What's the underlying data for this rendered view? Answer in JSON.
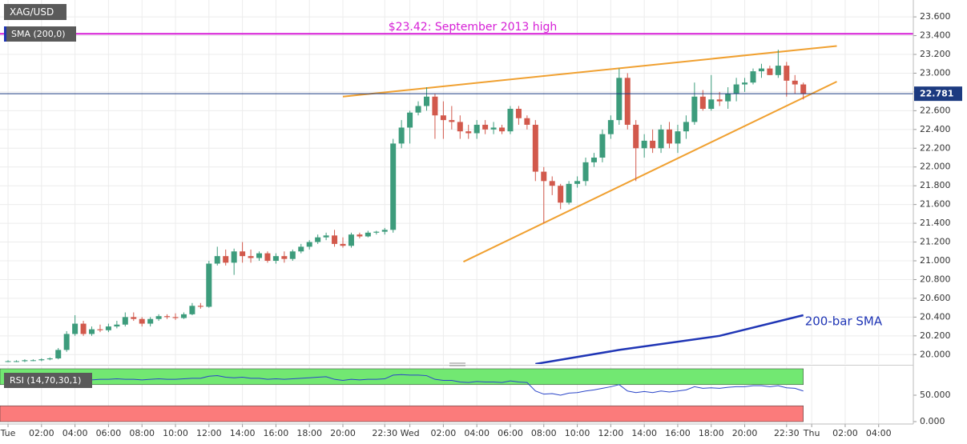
{
  "chart_data": [
    {
      "type": "candlestick",
      "title": "XAG/USD",
      "x": [
        0,
        0.5,
        1,
        1.5,
        2,
        2.5,
        3,
        3.5,
        4,
        4.5,
        5,
        5.5,
        6,
        6.5,
        7,
        7.5,
        8,
        8.5,
        9,
        9.5,
        10,
        10.5,
        11,
        11.5,
        12,
        12.5,
        13,
        13.5,
        14,
        14.5,
        15,
        15.5,
        16,
        16.5,
        17,
        17.5,
        18,
        18.5,
        19,
        19.5,
        20,
        20.5,
        21,
        21.5,
        22,
        22.5,
        23,
        23.5,
        24,
        24.5,
        25,
        25.5,
        26,
        26.5,
        27,
        27.5,
        28,
        28.5,
        29,
        29.5,
        30,
        30.5,
        31,
        31.5,
        32,
        32.5,
        33,
        33.5,
        34,
        34.5,
        35,
        35.5,
        36,
        36.5,
        37,
        37.5,
        38,
        38.5,
        39,
        39.5,
        40,
        40.5,
        41,
        41.5,
        42,
        42.5,
        43,
        43.5,
        44,
        44.5,
        45,
        45.5,
        46,
        46.5,
        47,
        47.5
      ],
      "open": [
        19.93,
        19.93,
        19.93,
        19.94,
        19.94,
        19.95,
        19.96,
        20.05,
        20.22,
        20.33,
        20.22,
        20.27,
        20.26,
        20.3,
        20.32,
        20.4,
        20.38,
        20.33,
        20.38,
        20.41,
        20.4,
        20.39,
        20.43,
        20.52,
        20.51,
        20.97,
        21.05,
        20.98,
        21.1,
        21.05,
        21.03,
        21.08,
        21.0,
        21.05,
        21.02,
        21.1,
        21.15,
        21.2,
        21.25,
        21.27,
        21.18,
        21.16,
        21.28,
        21.26,
        21.3,
        21.31,
        21.33,
        22.25,
        22.42,
        22.58,
        22.65,
        22.75,
        22.55,
        22.5,
        22.48,
        22.38,
        22.36,
        22.45,
        22.4,
        22.42,
        22.38,
        22.62,
        22.52,
        22.45,
        21.95,
        21.85,
        21.8,
        21.62,
        21.82,
        21.85,
        22.05,
        22.1,
        22.35,
        22.5,
        22.95,
        22.45,
        22.2,
        22.28,
        22.2,
        22.4,
        22.25,
        22.38,
        22.48,
        22.75,
        22.62,
        22.72,
        22.7,
        22.78,
        22.88,
        22.9,
        23.02,
        23.05,
        22.98,
        23.08,
        22.92,
        22.88
      ],
      "high": [
        19.94,
        19.94,
        19.95,
        19.95,
        19.96,
        19.97,
        20.07,
        20.25,
        20.42,
        20.36,
        20.3,
        20.32,
        20.33,
        20.36,
        20.45,
        20.45,
        20.4,
        20.4,
        20.43,
        20.43,
        20.44,
        20.45,
        20.55,
        20.55,
        21.0,
        21.15,
        21.12,
        21.13,
        21.2,
        21.12,
        21.1,
        21.1,
        21.08,
        21.1,
        21.12,
        21.18,
        21.22,
        21.28,
        21.3,
        21.33,
        21.25,
        21.3,
        21.3,
        21.32,
        21.32,
        21.35,
        22.3,
        22.5,
        22.6,
        22.7,
        22.85,
        22.78,
        22.7,
        22.65,
        22.55,
        22.45,
        22.5,
        22.5,
        22.48,
        22.45,
        22.65,
        22.65,
        22.55,
        22.5,
        22.0,
        21.9,
        21.82,
        21.85,
        21.9,
        22.1,
        22.15,
        22.4,
        22.55,
        23.05,
        23.0,
        22.5,
        22.35,
        22.4,
        22.45,
        22.48,
        22.45,
        22.55,
        22.9,
        22.82,
        22.98,
        22.8,
        22.85,
        22.95,
        22.95,
        23.05,
        23.1,
        23.08,
        23.25,
        23.12,
        22.98,
        22.9
      ],
      "low": [
        19.92,
        19.92,
        19.92,
        19.93,
        19.93,
        19.94,
        19.95,
        20.03,
        20.2,
        20.2,
        20.2,
        20.24,
        20.24,
        20.28,
        20.3,
        20.36,
        20.3,
        20.3,
        20.36,
        20.38,
        20.37,
        20.38,
        20.42,
        20.49,
        20.5,
        20.95,
        20.95,
        20.85,
        20.98,
        20.98,
        21.0,
        20.98,
        20.97,
        20.98,
        21.0,
        21.08,
        21.12,
        21.18,
        21.22,
        21.15,
        21.14,
        21.14,
        21.24,
        21.25,
        21.28,
        21.28,
        21.3,
        22.2,
        22.25,
        22.55,
        22.6,
        22.3,
        22.3,
        22.4,
        22.3,
        22.3,
        22.3,
        22.35,
        22.35,
        22.35,
        22.35,
        22.45,
        22.4,
        21.85,
        21.4,
        21.7,
        21.55,
        21.6,
        21.78,
        21.8,
        22.0,
        22.05,
        22.3,
        22.45,
        22.4,
        21.85,
        22.1,
        22.15,
        22.15,
        22.2,
        22.15,
        22.3,
        22.45,
        22.6,
        22.6,
        22.65,
        22.62,
        22.7,
        22.8,
        22.88,
        22.95,
        22.98,
        22.95,
        22.75,
        22.78,
        22.72
      ],
      "close": [
        19.93,
        19.93,
        19.94,
        19.94,
        19.95,
        19.96,
        20.05,
        20.22,
        20.33,
        20.22,
        20.27,
        20.26,
        20.3,
        20.32,
        20.4,
        20.38,
        20.33,
        20.38,
        20.41,
        20.4,
        20.39,
        20.43,
        20.52,
        20.51,
        20.97,
        21.05,
        20.98,
        21.1,
        21.05,
        21.03,
        21.08,
        21.0,
        21.05,
        21.02,
        21.1,
        21.15,
        21.2,
        21.25,
        21.27,
        21.18,
        21.16,
        21.28,
        21.26,
        21.3,
        21.31,
        21.33,
        22.25,
        22.42,
        22.58,
        22.65,
        22.75,
        22.55,
        22.5,
        22.48,
        22.38,
        22.36,
        22.45,
        22.4,
        22.42,
        22.38,
        22.62,
        22.52,
        22.45,
        21.95,
        21.85,
        21.8,
        21.62,
        21.82,
        21.85,
        22.05,
        22.1,
        22.35,
        22.5,
        22.95,
        22.45,
        22.2,
        22.28,
        22.2,
        22.4,
        22.25,
        22.38,
        22.48,
        22.75,
        22.62,
        22.72,
        22.7,
        22.78,
        22.88,
        22.9,
        23.02,
        23.05,
        22.98,
        23.08,
        22.92,
        22.88,
        22.78
      ],
      "up_color": "#3d9c7c",
      "down_color": "#d2594c",
      "xlim": [
        -0.48,
        54.07
      ],
      "xticks": [
        {
          "value": 0,
          "label": "Tue"
        },
        {
          "value": 2,
          "label": "02:00"
        },
        {
          "value": 4,
          "label": "04:00"
        },
        {
          "value": 6,
          "label": "06:00"
        },
        {
          "value": 8,
          "label": "08:00"
        },
        {
          "value": 10,
          "label": "10:00"
        },
        {
          "value": 12,
          "label": "12:00"
        },
        {
          "value": 14,
          "label": "14:00"
        },
        {
          "value": 16,
          "label": "16:00"
        },
        {
          "value": 18,
          "label": "18:00"
        },
        {
          "value": 20,
          "label": "20:00"
        },
        {
          "value": 22.5,
          "label": "22:30"
        },
        {
          "value": 24,
          "label": "Wed"
        },
        {
          "value": 26,
          "label": "02:00"
        },
        {
          "value": 28,
          "label": "04:00"
        },
        {
          "value": 30,
          "label": "06:00"
        },
        {
          "value": 32,
          "label": "08:00"
        },
        {
          "value": 34,
          "label": "10:00"
        },
        {
          "value": 36,
          "label": "12:00"
        },
        {
          "value": 38,
          "label": "14:00"
        },
        {
          "value": 40,
          "label": "16:00"
        },
        {
          "value": 42,
          "label": "18:00"
        },
        {
          "value": 44,
          "label": "20:00"
        },
        {
          "value": 46.5,
          "label": "22:30"
        },
        {
          "value": 48,
          "label": "Thu"
        },
        {
          "value": 50,
          "label": "02:00"
        },
        {
          "value": 52,
          "label": "04:00"
        }
      ],
      "ylim": [
        19.9,
        23.78
      ],
      "yticks": [
        {
          "value": 20.0,
          "label": "20.000"
        },
        {
          "value": 20.2,
          "label": "20.200"
        },
        {
          "value": 20.4,
          "label": "20.400"
        },
        {
          "value": 20.6,
          "label": "20.600"
        },
        {
          "value": 20.8,
          "label": "20.800"
        },
        {
          "value": 21.0,
          "label": "21.000"
        },
        {
          "value": 21.2,
          "label": "21.200"
        },
        {
          "value": 21.4,
          "label": "21.400"
        },
        {
          "value": 21.6,
          "label": "21.600"
        },
        {
          "value": 21.8,
          "label": "21.800"
        },
        {
          "value": 22.0,
          "label": "22.000"
        },
        {
          "value": 22.2,
          "label": "22.200"
        },
        {
          "value": 22.4,
          "label": "22.400"
        },
        {
          "value": 22.6,
          "label": "22.600"
        },
        {
          "value": 22.8,
          "label": "22.800"
        },
        {
          "value": 23.0,
          "label": "23.000"
        },
        {
          "value": 23.2,
          "label": "23.200"
        },
        {
          "value": 23.4,
          "label": "23.400"
        },
        {
          "value": 23.6,
          "label": "23.600"
        }
      ],
      "grid": true,
      "series": [
        {
          "name": "SMA (200,0)",
          "annotation": "200-bar SMA",
          "color": "#1f35b5",
          "x": [
            31.5,
            36.5,
            42.5,
            47.5
          ],
          "values": [
            19.9,
            20.05,
            20.2,
            20.42
          ]
        }
      ],
      "hlines": [
        {
          "value": 23.42,
          "label": "$23.42: September 2013 high",
          "color": "#d61fd6"
        }
      ],
      "last_price": {
        "value": 22.781,
        "color": "#1c3a80"
      },
      "trendlines": [
        {
          "color": "#f0a030",
          "x": [
            20,
            49.5
          ],
          "values": [
            22.75,
            23.29
          ]
        },
        {
          "color": "#f0a030",
          "x": [
            27.2,
            49.5
          ],
          "values": [
            20.99,
            22.91
          ]
        }
      ]
    },
    {
      "type": "line",
      "title": "RSI (14,70,30,1)",
      "color": "#2a45c8",
      "x": [
        0,
        0.5,
        1,
        1.5,
        2,
        2.5,
        3,
        3.5,
        4,
        4.5,
        5,
        5.5,
        6,
        6.5,
        7,
        7.5,
        8,
        8.5,
        9,
        9.5,
        10,
        10.5,
        11,
        11.5,
        12,
        12.5,
        13,
        13.5,
        14,
        14.5,
        15,
        15.5,
        16,
        16.5,
        17,
        17.5,
        18,
        18.5,
        19,
        19.5,
        20,
        20.5,
        21,
        21.5,
        22,
        22.5,
        23,
        23.5,
        24,
        24.5,
        25,
        25.5,
        26,
        26.5,
        27,
        27.5,
        28,
        28.5,
        29,
        29.5,
        30,
        30.5,
        31,
        31.5,
        32,
        32.5,
        33,
        33.5,
        34,
        34.5,
        35,
        35.5,
        36,
        36.5,
        37,
        37.5,
        38,
        38.5,
        39,
        39.5,
        40,
        40.5,
        41,
        41.5,
        42,
        42.5,
        43,
        43.5,
        44,
        44.5,
        45,
        45.5,
        46,
        46.5,
        47,
        47.5
      ],
      "values": [
        78,
        77,
        78,
        77,
        78,
        77,
        80,
        83,
        84,
        80,
        79,
        80,
        80,
        81,
        80,
        80,
        79,
        80,
        81,
        80,
        80,
        81,
        82,
        82,
        86,
        87,
        84,
        83,
        84,
        82,
        82,
        80,
        81,
        80,
        81,
        82,
        83,
        84,
        85,
        80,
        78,
        80,
        79,
        80,
        80,
        81,
        88,
        89,
        88,
        88,
        87,
        80,
        78,
        78,
        75,
        74,
        76,
        75,
        75,
        74,
        77,
        75,
        74,
        58,
        52,
        53,
        50,
        54,
        55,
        58,
        60,
        63,
        66,
        70,
        58,
        55,
        57,
        55,
        58,
        56,
        58,
        60,
        66,
        63,
        64,
        63,
        65,
        66,
        66,
        68,
        68,
        66,
        68,
        64,
        63,
        58
      ],
      "xlim": [
        -0.48,
        54.07
      ],
      "ylim": [
        -4.5,
        104.5
      ],
      "yticks": [
        {
          "value": 50,
          "label": "50.000"
        },
        {
          "value": 0,
          "label": "0.000"
        }
      ],
      "bands": [
        {
          "from": 70,
          "to": 100,
          "color": "#72e872"
        },
        {
          "from": 0,
          "to": 30,
          "color": "#fb7b7b"
        }
      ]
    }
  ]
}
